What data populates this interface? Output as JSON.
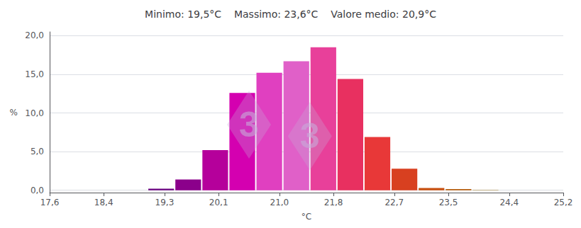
{
  "chart_data": {
    "type": "bar",
    "title": "Minimo: 19,5°C    Massimo: 23,6°C    Valore medio: 20,9°C",
    "xlabel": "°C",
    "ylabel": "%",
    "x": [
      19.25,
      19.65,
      20.05,
      20.45,
      20.85,
      21.25,
      21.65,
      22.05,
      22.45,
      22.85,
      23.25,
      23.65,
      24.05
    ],
    "values": [
      0.2,
      1.4,
      5.2,
      12.6,
      15.2,
      16.7,
      18.5,
      14.4,
      6.9,
      2.8,
      0.3,
      0.15,
      0.05
    ],
    "colors": [
      "#6a0080",
      "#8b008b",
      "#b5009b",
      "#d400b0",
      "#e040c0",
      "#e060c8",
      "#e8409a",
      "#e83060",
      "#e83838",
      "#d84020",
      "#c85010",
      "#b86010",
      "#a07820"
    ],
    "xlim": [
      17.6,
      25.2
    ],
    "ylim": [
      -0.3,
      20.5
    ],
    "xticks": [
      {
        "value": 17.6,
        "label": "17,6"
      },
      {
        "value": 18.4,
        "label": "18,4"
      },
      {
        "value": 19.3,
        "label": "19,3"
      },
      {
        "value": 20.1,
        "label": "20,1"
      },
      {
        "value": 21.0,
        "label": "21,0"
      },
      {
        "value": 21.8,
        "label": "21,8"
      },
      {
        "value": 22.7,
        "label": "22,7"
      },
      {
        "value": 23.5,
        "label": "23,5"
      },
      {
        "value": 24.4,
        "label": "24,4"
      },
      {
        "value": 25.2,
        "label": "25,2"
      }
    ],
    "yticks": [
      {
        "value": 0.0,
        "label": "0,0"
      },
      {
        "value": 5.0,
        "label": "5,0"
      },
      {
        "value": 10.0,
        "label": "10,0"
      },
      {
        "value": 15.0,
        "label": "15,0"
      },
      {
        "value": 20.0,
        "label": "20,0"
      }
    ],
    "grid": true,
    "annotations": [
      {
        "text": "3",
        "x": 20.55,
        "y": 8.5,
        "color": "#c8aad8"
      },
      {
        "text": "3",
        "x": 21.45,
        "y": 7.0,
        "color": "#c8aad8"
      }
    ]
  }
}
